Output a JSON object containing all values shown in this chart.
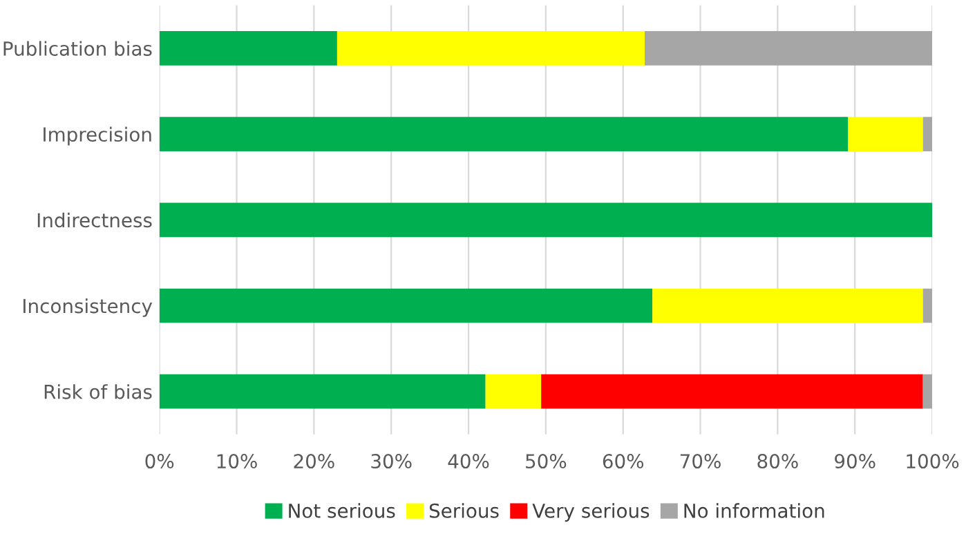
{
  "chart_data": {
    "type": "bar",
    "orientation": "horizontal",
    "stacked": true,
    "categories": [
      "Publication bias",
      "Imprecision",
      "Indirectness",
      "Inconsistency",
      "Risk of bias"
    ],
    "series": [
      {
        "name": "Not serious",
        "color": "#00b050",
        "values": [
          23,
          89.1,
          100,
          63.8,
          42.2
        ]
      },
      {
        "name": "Serious",
        "color": "#ffff00",
        "values": [
          39.8,
          9.7,
          0,
          35,
          7.2
        ]
      },
      {
        "name": "Very serious",
        "color": "#ff0000",
        "values": [
          0,
          0,
          0,
          0,
          49.4
        ]
      },
      {
        "name": "No information",
        "color": "#a6a6a6",
        "values": [
          37.2,
          1.2,
          0,
          1.2,
          1.2
        ]
      }
    ],
    "xlim": [
      0,
      100
    ],
    "xticks": [
      {
        "value": 0,
        "label": "0%"
      },
      {
        "value": 10,
        "label": "10%"
      },
      {
        "value": 20,
        "label": "20%"
      },
      {
        "value": 30,
        "label": "30%"
      },
      {
        "value": 40,
        "label": "40%"
      },
      {
        "value": 50,
        "label": "50%"
      },
      {
        "value": 60,
        "label": "60%"
      },
      {
        "value": 70,
        "label": "70%"
      },
      {
        "value": 80,
        "label": "80%"
      },
      {
        "value": 90,
        "label": "90%"
      },
      {
        "value": 100,
        "label": "100%"
      }
    ],
    "grid": "x",
    "legend": "bottom"
  }
}
